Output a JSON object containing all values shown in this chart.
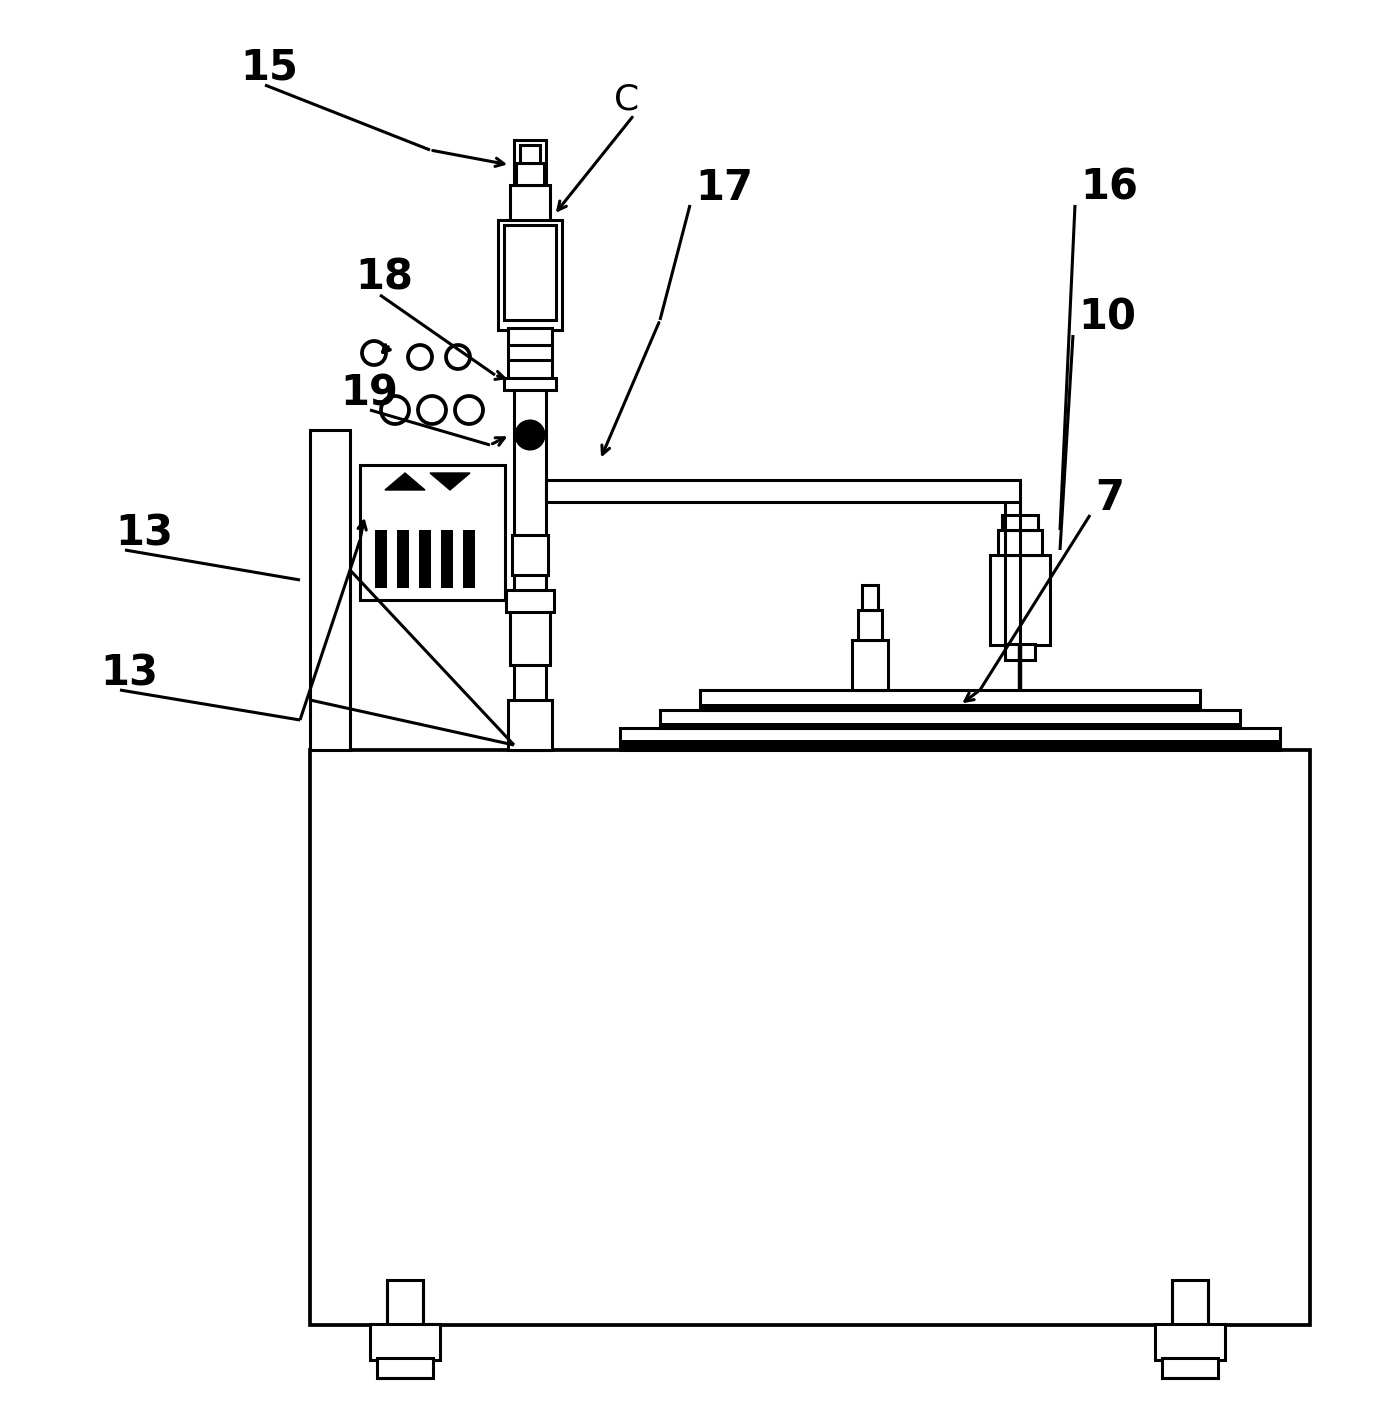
{
  "bg_color": "#ffffff",
  "line_color": "#000000",
  "fig_width": 13.92,
  "fig_height": 14.2,
  "label_fontsize": 30,
  "lw": 2.2
}
